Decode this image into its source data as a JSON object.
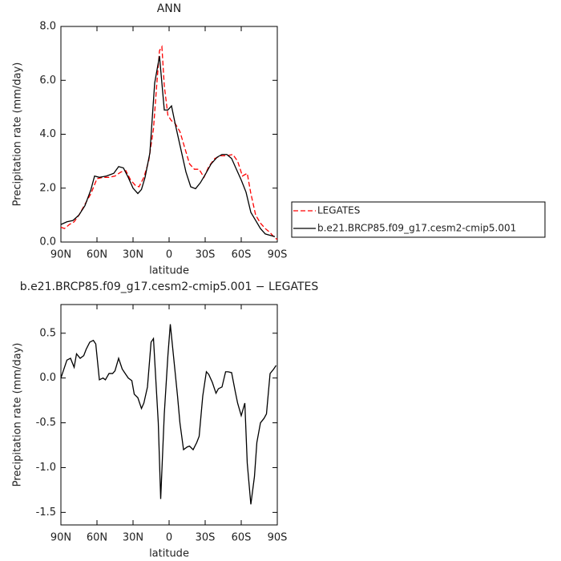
{
  "chart_data": [
    {
      "type": "line",
      "title": "ANN",
      "xlabel": "latitude",
      "ylabel": "Precipitation rate (mm/day)",
      "xlim": [
        90,
        -90
      ],
      "xticks": [
        {
          "value": 90,
          "label": "90N"
        },
        {
          "value": 60,
          "label": "60N"
        },
        {
          "value": 30,
          "label": "30N"
        },
        0,
        {
          "value": -30,
          "label": "30S"
        },
        {
          "value": -60,
          "label": "60S"
        },
        {
          "value": -90,
          "label": "90S"
        }
      ],
      "ylim": [
        0,
        8
      ],
      "yticks": [
        {
          "value": 0,
          "label": "0.0"
        },
        {
          "value": 2,
          "label": "2.0"
        },
        {
          "value": 4,
          "label": "4.0"
        },
        {
          "value": 6,
          "label": "6.0"
        },
        {
          "value": 8,
          "label": "8.0"
        }
      ],
      "legend": "right",
      "series": [
        {
          "name": "LEGATES",
          "color": "#ff0000",
          "linestyle": "dashed",
          "x": [
            90,
            87,
            83,
            79,
            75,
            70,
            65,
            60,
            55,
            50,
            45,
            40,
            36,
            32,
            28,
            25,
            21,
            17,
            13,
            10,
            8,
            6,
            4,
            1,
            -2,
            -5,
            -9,
            -13,
            -17,
            -21,
            -25,
            -29,
            -33,
            -38,
            -43,
            -48,
            -53,
            -57,
            -61,
            -65,
            -68,
            -72,
            -76,
            -80,
            -84,
            -88,
            -90
          ],
          "values": [
            0.55,
            0.5,
            0.65,
            0.75,
            1.0,
            1.4,
            1.8,
            2.35,
            2.4,
            2.4,
            2.45,
            2.6,
            2.65,
            2.3,
            2.1,
            2.05,
            2.4,
            3.0,
            4.2,
            6.0,
            7.1,
            7.25,
            5.8,
            4.7,
            4.5,
            4.4,
            4.1,
            3.5,
            2.9,
            2.7,
            2.7,
            2.4,
            2.8,
            3.1,
            3.2,
            3.2,
            3.25,
            3.0,
            2.45,
            2.55,
            1.8,
            1.0,
            0.7,
            0.5,
            0.35,
            0.15,
            0.1
          ]
        },
        {
          "name": "b.e21.BRCP85.f09_g17.cesm2-cmip5.001",
          "color": "#000000",
          "linestyle": "solid",
          "x": [
            90,
            85,
            80,
            75,
            70,
            65,
            62,
            58,
            52,
            46,
            42,
            38,
            34,
            30,
            26,
            23,
            20,
            16,
            12,
            8,
            4,
            1,
            -2,
            -5,
            -9,
            -14,
            -18,
            -22,
            -26,
            -30,
            -35,
            -40,
            -44,
            -48,
            -52,
            -56,
            -60,
            -64,
            -68,
            -72,
            -76,
            -80,
            -84,
            -88
          ],
          "values": [
            0.65,
            0.75,
            0.8,
            1.0,
            1.35,
            1.95,
            2.45,
            2.4,
            2.45,
            2.55,
            2.8,
            2.75,
            2.4,
            2.0,
            1.8,
            1.95,
            2.4,
            3.3,
            5.9,
            6.9,
            4.9,
            4.9,
            5.05,
            4.4,
            3.6,
            2.6,
            2.05,
            1.98,
            2.2,
            2.5,
            2.9,
            3.15,
            3.25,
            3.25,
            3.1,
            2.7,
            2.3,
            1.85,
            1.1,
            0.8,
            0.5,
            0.3,
            0.25,
            0.2
          ]
        }
      ]
    },
    {
      "type": "line",
      "title": "b.e21.BRCP85.f09_g17.cesm2-cmip5.001 − LEGATES",
      "xlabel": "latitude",
      "ylabel": "Precipitation rate (mm/day)",
      "xlim": [
        90,
        -90
      ],
      "xticks": [
        {
          "value": 90,
          "label": "90N"
        },
        {
          "value": 60,
          "label": "60N"
        },
        {
          "value": 30,
          "label": "30N"
        },
        0,
        {
          "value": -30,
          "label": "30S"
        },
        {
          "value": -60,
          "label": "60S"
        },
        {
          "value": -90,
          "label": "90S"
        }
      ],
      "ylim": [
        -1.64,
        0.82
      ],
      "yticks": [
        -1.5,
        {
          "value": -1,
          "label": "-1.0"
        },
        -0.5,
        {
          "value": 0,
          "label": "0.0"
        },
        0.5
      ],
      "series": [
        {
          "color": "#000000",
          "linestyle": "solid",
          "x": [
            90,
            85,
            82,
            79,
            77,
            74,
            71,
            69,
            66,
            63,
            61,
            58,
            55,
            53,
            50,
            47,
            45,
            42,
            39,
            37,
            34,
            31,
            29,
            26,
            23,
            21,
            18,
            15,
            13,
            9,
            7,
            4,
            1,
            -1,
            -4,
            -7,
            -9,
            -12,
            -15,
            -17,
            -20,
            -23,
            -25,
            -28,
            -31,
            -33,
            -36,
            -39,
            -41,
            -44,
            -47,
            -49,
            -52,
            -55,
            -57,
            -60,
            -63,
            -65,
            -68,
            -71,
            -73,
            -76,
            -79,
            -81,
            -84,
            -87,
            -89
          ],
          "values": [
            0.0,
            0.2,
            0.22,
            0.12,
            0.27,
            0.22,
            0.25,
            0.32,
            0.4,
            0.42,
            0.38,
            -0.02,
            0.0,
            -0.02,
            0.05,
            0.05,
            0.08,
            0.22,
            0.1,
            0.06,
            0.0,
            -0.03,
            -0.18,
            -0.22,
            -0.34,
            -0.28,
            -0.1,
            0.4,
            0.44,
            -0.5,
            -1.35,
            -0.4,
            0.25,
            0.6,
            0.2,
            -0.2,
            -0.5,
            -0.8,
            -0.77,
            -0.76,
            -0.8,
            -0.72,
            -0.65,
            -0.2,
            0.07,
            0.04,
            -0.05,
            -0.17,
            -0.12,
            -0.1,
            0.07,
            0.07,
            0.06,
            -0.15,
            -0.28,
            -0.42,
            -0.28,
            -0.95,
            -1.41,
            -1.1,
            -0.72,
            -0.5,
            -0.45,
            -0.4,
            0.05,
            0.1,
            0.14
          ]
        }
      ]
    }
  ]
}
